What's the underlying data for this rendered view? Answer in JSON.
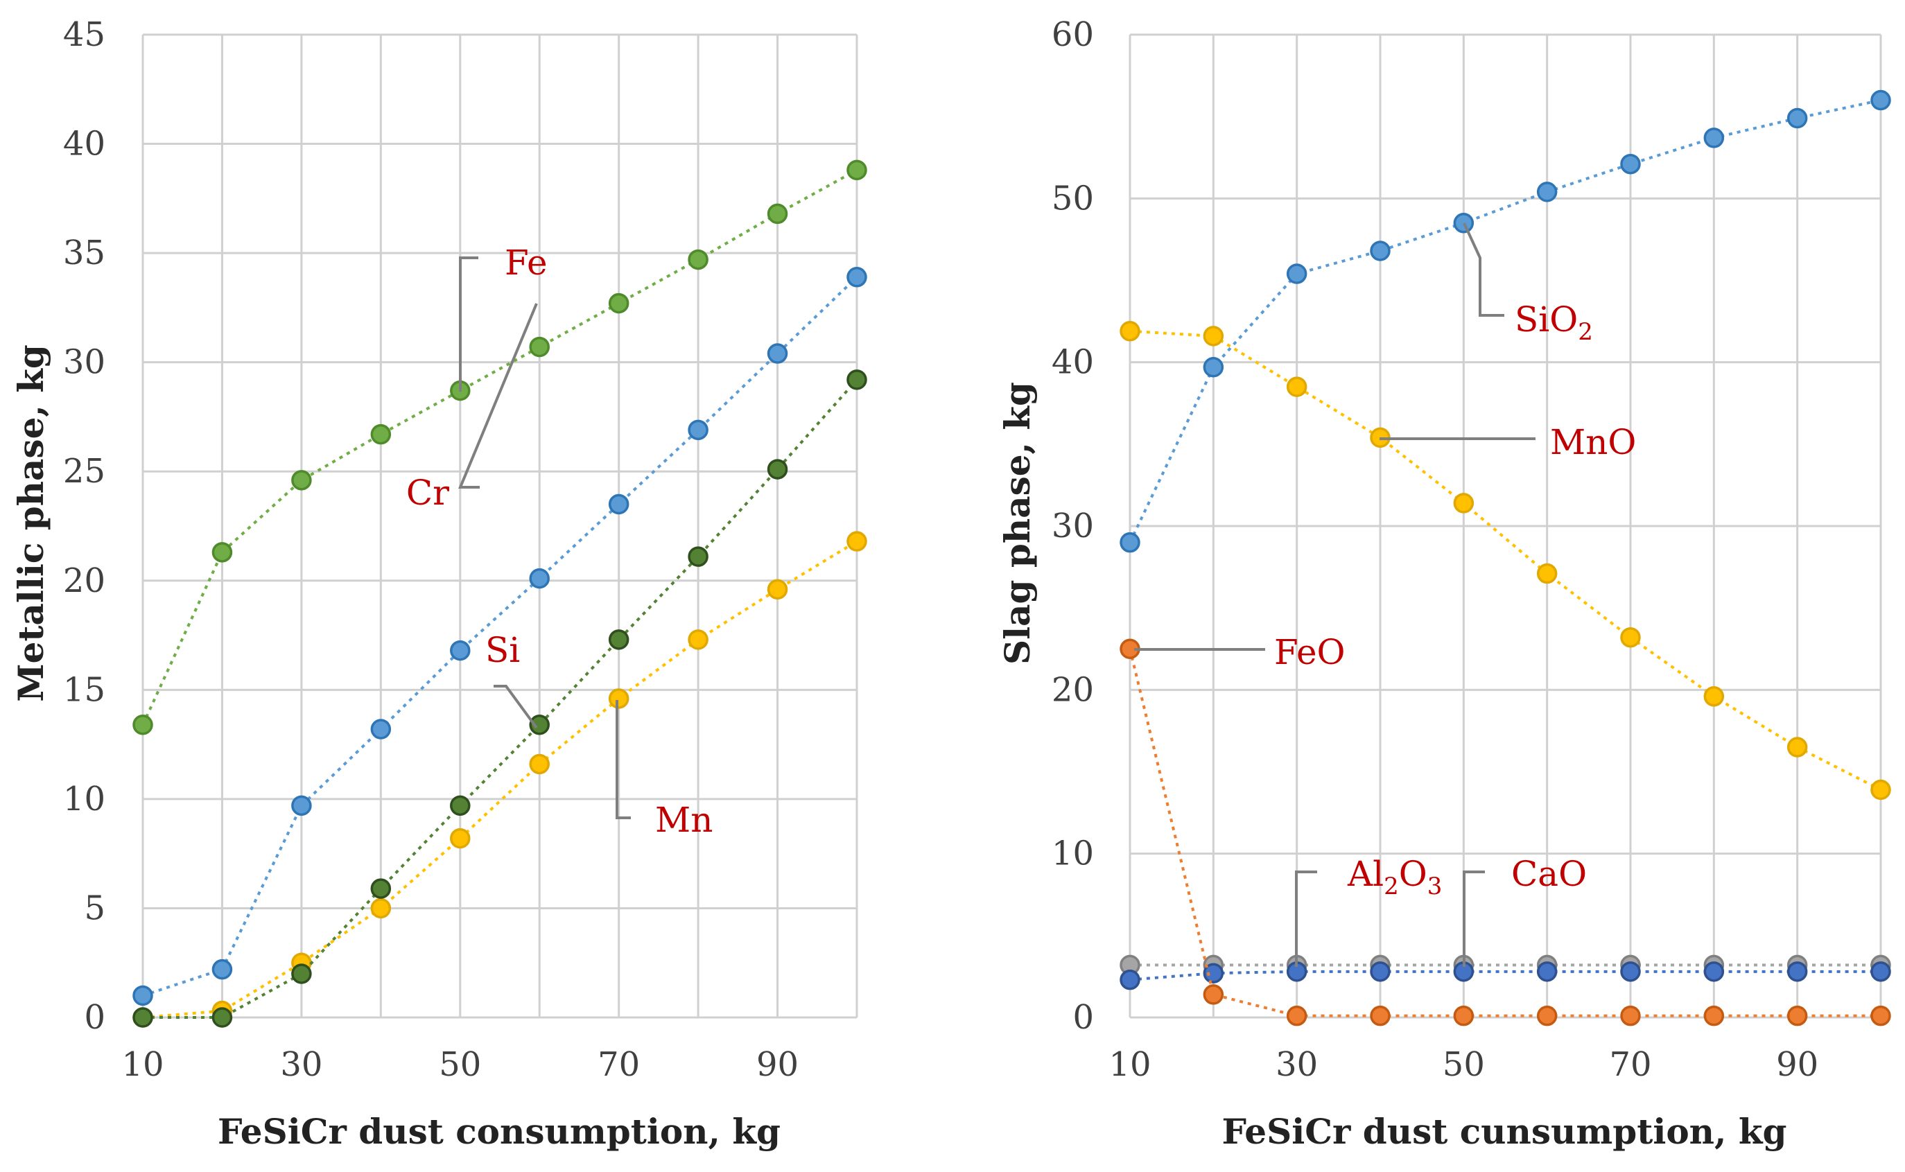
{
  "chart_data": [
    {
      "type": "line",
      "xlabel": "FeSiCr dust consumption, kg",
      "ylabel": "Metallic phase, kg",
      "x": [
        10,
        20,
        30,
        40,
        50,
        60,
        70,
        80,
        90,
        100
      ],
      "xticks": [
        10,
        30,
        50,
        70,
        90
      ],
      "xlim": [
        10,
        100
      ],
      "ylim": [
        0,
        45
      ],
      "yticks": [
        0,
        5,
        10,
        15,
        20,
        25,
        30,
        35,
        40,
        45
      ],
      "grid": true,
      "series": [
        {
          "name": "Mn",
          "color": "#ffc000",
          "edge": "#e0a800",
          "values": [
            0.0,
            0.3,
            2.5,
            5.0,
            8.2,
            11.6,
            14.6,
            17.3,
            19.6,
            21.8
          ]
        },
        {
          "name": "Si",
          "color": "#548235",
          "edge": "#2f4f1e",
          "values": [
            0.0,
            0.0,
            2.0,
            5.9,
            9.7,
            13.4,
            17.3,
            21.1,
            25.1,
            29.2
          ]
        },
        {
          "name": "Cr",
          "color": "#5b9bd5",
          "edge": "#2e75b6",
          "values": [
            1.0,
            2.2,
            9.7,
            13.2,
            16.8,
            20.1,
            23.5,
            26.9,
            30.4,
            33.9
          ]
        },
        {
          "name": "Fe",
          "color": "#70ad47",
          "edge": "#4f8a2b",
          "values": [
            13.4,
            21.3,
            24.6,
            26.7,
            28.7,
            30.7,
            32.7,
            34.7,
            36.8,
            38.8
          ]
        }
      ],
      "labels": [
        {
          "series": "Fe",
          "text": "Fe",
          "point": 4
        },
        {
          "series": "Cr",
          "text": "Cr",
          "point": 5
        },
        {
          "series": "Si",
          "text": "Si",
          "point": 5
        },
        {
          "series": "Mn",
          "text": "Mn",
          "point": 6
        }
      ]
    },
    {
      "type": "line",
      "xlabel": "FeSiCr dust cunsumption, kg",
      "ylabel": "Slag phase, kg",
      "x": [
        10,
        20,
        30,
        40,
        50,
        60,
        70,
        80,
        90,
        100
      ],
      "xticks": [
        10,
        30,
        50,
        70,
        90
      ],
      "xlim": [
        10,
        100
      ],
      "ylim": [
        0,
        60
      ],
      "yticks": [
        0,
        10,
        20,
        30,
        40,
        50,
        60
      ],
      "grid": true,
      "series": [
        {
          "name": "CaO",
          "color": "#a5a5a5",
          "edge": "#808080",
          "values": [
            3.2,
            3.2,
            3.2,
            3.2,
            3.2,
            3.2,
            3.2,
            3.2,
            3.2,
            3.2
          ]
        },
        {
          "name": "Al2O3",
          "color": "#4472c4",
          "edge": "#2f528f",
          "values": [
            2.3,
            2.7,
            2.8,
            2.8,
            2.8,
            2.8,
            2.8,
            2.8,
            2.8,
            2.8
          ]
        },
        {
          "name": "FeO",
          "color": "#ed7d31",
          "edge": "#c55a11",
          "values": [
            22.5,
            1.4,
            0.1,
            0.1,
            0.1,
            0.1,
            0.1,
            0.1,
            0.1,
            0.1
          ]
        },
        {
          "name": "MnO",
          "color": "#ffc000",
          "edge": "#e0a800",
          "values": [
            41.9,
            41.6,
            38.5,
            35.4,
            31.4,
            27.1,
            23.2,
            19.6,
            16.5,
            13.9
          ]
        },
        {
          "name": "SiO2",
          "color": "#5b9bd5",
          "edge": "#2e75b6",
          "values": [
            29.0,
            39.7,
            45.4,
            46.8,
            48.5,
            50.4,
            52.1,
            53.7,
            54.9,
            56.0
          ]
        }
      ],
      "labels": [
        {
          "series": "SiO2",
          "text": "SiO2",
          "main": "SiO",
          "sub": "2",
          "point": 4
        },
        {
          "series": "MnO",
          "text": "MnO",
          "point": 3
        },
        {
          "series": "FeO",
          "text": "FeO",
          "point": 0
        },
        {
          "series": "Al2O3",
          "text": "Al2O3",
          "parts": [
            "Al",
            "2",
            "O",
            "3"
          ],
          "point": 2
        },
        {
          "series": "CaO",
          "text": "CaO",
          "point": 4
        }
      ]
    }
  ]
}
